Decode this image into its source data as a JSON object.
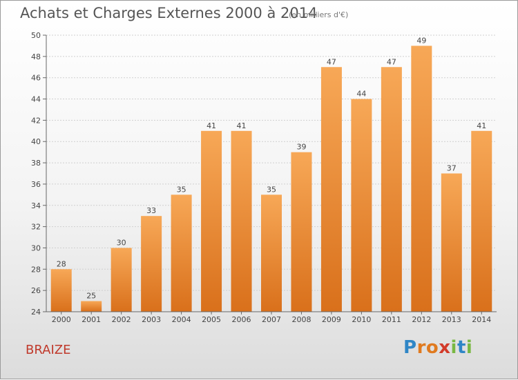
{
  "chart_data": {
    "type": "bar",
    "title": "Achats et Charges Externes 2000 à 2014",
    "unit_note": "(en milliers d'€)",
    "categories": [
      "2000",
      "2001",
      "2002",
      "2003",
      "2004",
      "2005",
      "2006",
      "2007",
      "2008",
      "2009",
      "2010",
      "2011",
      "2012",
      "2013",
      "2014"
    ],
    "values": [
      28,
      25,
      30,
      33,
      35,
      41,
      41,
      35,
      39,
      47,
      44,
      47,
      49,
      37,
      41
    ],
    "ylim": [
      24,
      50
    ],
    "yticks": [
      24,
      26,
      28,
      30,
      32,
      34,
      36,
      38,
      40,
      42,
      44,
      46,
      48,
      50
    ],
    "grid": true,
    "bar_color": "#f0923a"
  },
  "commune": "BRAIZE",
  "logo": {
    "letters": [
      "P",
      "r",
      "o",
      "x",
      "i",
      "t",
      "i"
    ],
    "colors": [
      "#2f86c6",
      "#e07a1f",
      "#e07a1f",
      "#d23b2a",
      "#79b843",
      "#2f86c6",
      "#79b843"
    ]
  }
}
